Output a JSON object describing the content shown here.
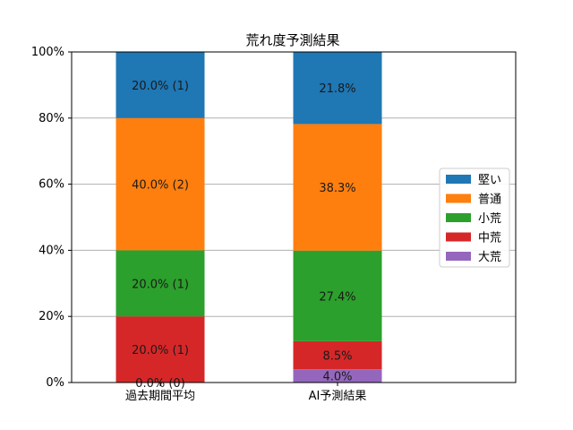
{
  "chart_data": {
    "type": "bar",
    "stacked": true,
    "title": "荒れ度予測結果",
    "xlabel": "",
    "ylabel": "",
    "ylim": [
      0,
      100
    ],
    "yticks": [
      "0%",
      "20%",
      "40%",
      "60%",
      "80%",
      "100%"
    ],
    "grid": "horizontal",
    "legend_position": "right",
    "categories": [
      "過去期間平均",
      "AI予測結果"
    ],
    "series": [
      {
        "name": "大荒",
        "color": "#9467bd",
        "values": [
          0.0,
          4.0
        ],
        "labels": [
          "0.0% (0)",
          "4.0%"
        ]
      },
      {
        "name": "中荒",
        "color": "#d62728",
        "values": [
          20.0,
          8.5
        ],
        "labels": [
          "20.0% (1)",
          "8.5%"
        ]
      },
      {
        "name": "小荒",
        "color": "#2ca02c",
        "values": [
          20.0,
          27.4
        ],
        "labels": [
          "20.0% (1)",
          "27.4%"
        ]
      },
      {
        "name": "普通",
        "color": "#ff7f0e",
        "values": [
          40.0,
          38.3
        ],
        "labels": [
          "40.0% (2)",
          "38.3%"
        ]
      },
      {
        "name": "堅い",
        "color": "#1f77b4",
        "values": [
          20.0,
          21.8
        ],
        "labels": [
          "20.0% (1)",
          "21.8%"
        ]
      }
    ],
    "legend_order": [
      "堅い",
      "普通",
      "小荒",
      "中荒",
      "大荒"
    ]
  }
}
